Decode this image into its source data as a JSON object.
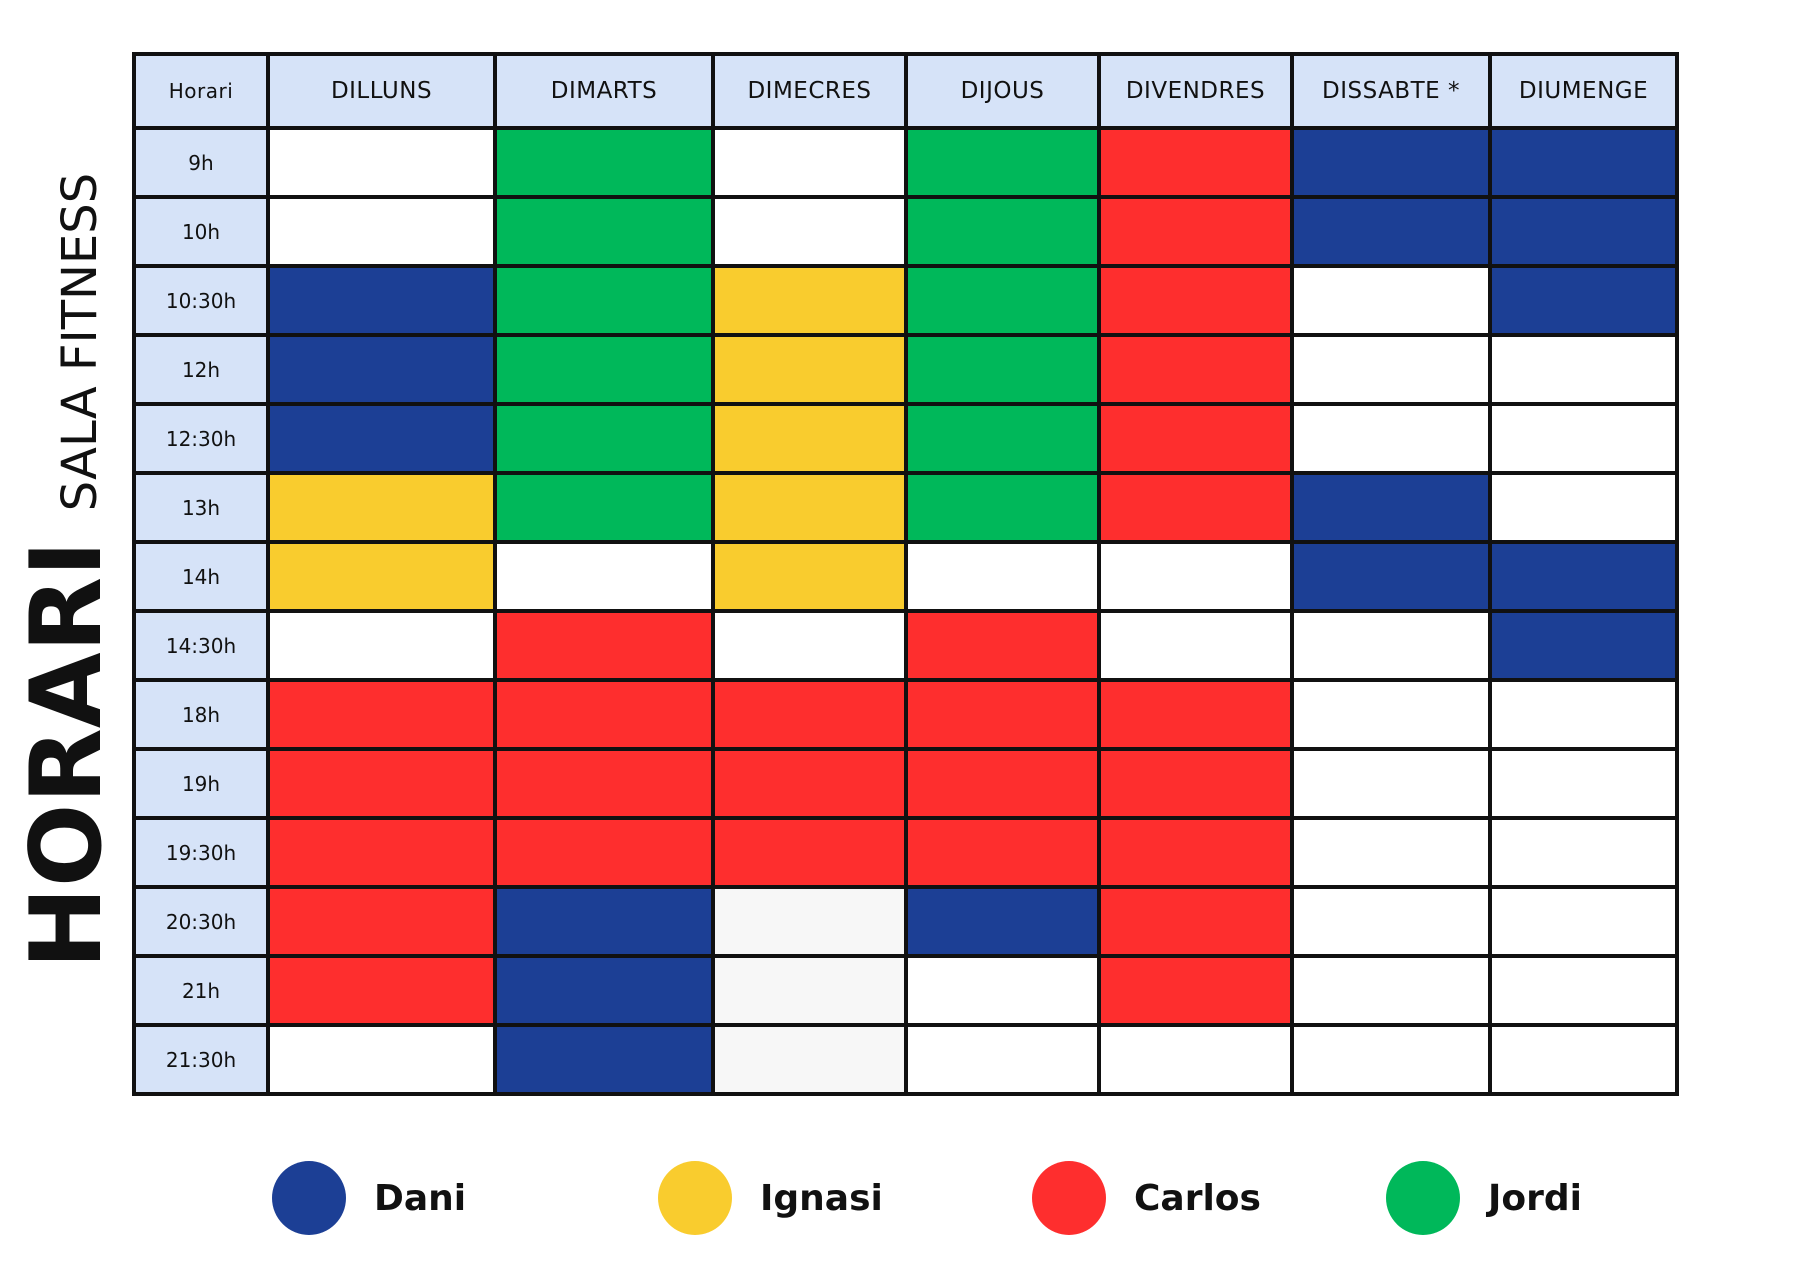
{
  "side_labels": {
    "section": "SALA FITNESS",
    "title": "HORARI"
  },
  "colors": {
    "D": "#1c3f95",
    "I": "#f9cc2e",
    "C": "#fe2e2e",
    "J": "#00b85a",
    "-": "#ffffff",
    "g": "#f7f7f7",
    "header_bg": "#d6e3f8"
  },
  "table": {
    "corner": "Horari",
    "days": [
      "DILLUNS",
      "DIMARTS",
      "DIMECRES",
      "DIJOUS",
      "DIVENDRES",
      "DISSABTE *",
      "DIUMENGE"
    ],
    "rows": [
      {
        "time": "9h",
        "slots": [
          "-",
          "J",
          "-",
          "J",
          "C",
          "D",
          "D"
        ]
      },
      {
        "time": "10h",
        "slots": [
          "-",
          "J",
          "-",
          "J",
          "C",
          "D",
          "D"
        ]
      },
      {
        "time": "10:30h",
        "slots": [
          "D",
          "J",
          "I",
          "J",
          "C",
          "-",
          "D"
        ]
      },
      {
        "time": "12h",
        "slots": [
          "D",
          "J",
          "I",
          "J",
          "C",
          "-",
          "-"
        ]
      },
      {
        "time": "12:30h",
        "slots": [
          "D",
          "J",
          "I",
          "J",
          "C",
          "-",
          "-"
        ]
      },
      {
        "time": "13h",
        "slots": [
          "I",
          "J",
          "I",
          "J",
          "C",
          "D",
          "-"
        ]
      },
      {
        "time": "14h",
        "slots": [
          "I",
          "-",
          "I",
          "-",
          "-",
          "D",
          "D"
        ]
      },
      {
        "time": "14:30h",
        "slots": [
          "-",
          "C",
          "-",
          "C",
          "-",
          "-",
          "D"
        ]
      },
      {
        "time": "18h",
        "slots": [
          "C",
          "C",
          "C",
          "C",
          "C",
          "-",
          "-"
        ]
      },
      {
        "time": "19h",
        "slots": [
          "C",
          "C",
          "C",
          "C",
          "C",
          "-",
          "-"
        ]
      },
      {
        "time": "19:30h",
        "slots": [
          "C",
          "C",
          "C",
          "C",
          "C",
          "-",
          "-"
        ]
      },
      {
        "time": "20:30h",
        "slots": [
          "C",
          "D",
          "g",
          "D",
          "C",
          "-",
          "-"
        ]
      },
      {
        "time": "21h",
        "slots": [
          "C",
          "D",
          "g",
          "-",
          "C",
          "-",
          "-"
        ]
      },
      {
        "time": "21:30h",
        "slots": [
          "-",
          "D",
          "g",
          "-",
          "-",
          "-",
          "-"
        ]
      }
    ]
  },
  "legend": [
    {
      "key": "D",
      "name": "Dani"
    },
    {
      "key": "I",
      "name": "Ignasi"
    },
    {
      "key": "C",
      "name": "Carlos"
    },
    {
      "key": "J",
      "name": "Jordi"
    }
  ]
}
